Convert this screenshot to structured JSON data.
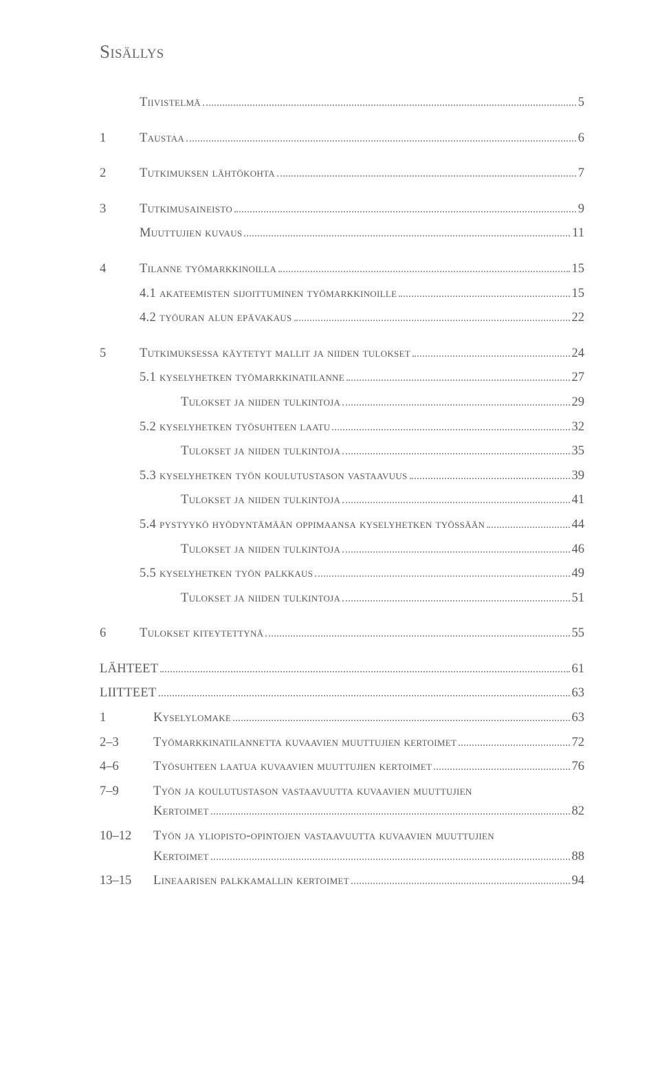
{
  "title": "Sisällys",
  "entries": [
    {
      "num": "",
      "label": "Tiivistelmä",
      "page": "5",
      "level": 1,
      "gap": false
    },
    {
      "num": "1",
      "label": "Taustaa",
      "page": "6",
      "level": 1,
      "gap": true
    },
    {
      "num": "2",
      "label": "Tutkimuksen lähtökohta",
      "page": "7",
      "level": 1,
      "gap": true
    },
    {
      "num": "3",
      "label": "Tutkimusaineisto",
      "page": "9",
      "level": 1,
      "gap": true
    },
    {
      "num": "",
      "label": "Muuttujien kuvaus",
      "page": "11",
      "level": 2,
      "gap": false
    },
    {
      "num": "4",
      "label": "Tilanne työmarkkinoilla",
      "page": "15",
      "level": 1,
      "gap": true
    },
    {
      "num": "",
      "label": "4.1 Akateemisten sijoittuminen työmarkkinoille",
      "page": "15",
      "level": 2,
      "gap": false
    },
    {
      "num": "",
      "label": "4.2 Työuran alun epävakaus",
      "page": "22",
      "level": 2,
      "gap": false
    },
    {
      "num": "5",
      "label": "Tutkimuksessa käytetyt mallit ja niiden tulokset",
      "page": "24",
      "level": 1,
      "gap": true
    },
    {
      "num": "",
      "label": "5.1 Kyselyhetken työmarkkinatilanne",
      "page": "27",
      "level": 2,
      "gap": false
    },
    {
      "num": "",
      "label": "Tulokset ja niiden tulkintoja",
      "page": "29",
      "level": 3,
      "gap": false
    },
    {
      "num": "",
      "label": "5.2 Kyselyhetken työsuhteen laatu",
      "page": "32",
      "level": 2,
      "gap": false
    },
    {
      "num": "",
      "label": "Tulokset ja niiden tulkintoja",
      "page": "35",
      "level": 3,
      "gap": false
    },
    {
      "num": "",
      "label": "5.3 Kyselyhetken työn koulutustason vastaavuus",
      "page": "39",
      "level": 2,
      "gap": false
    },
    {
      "num": "",
      "label": "Tulokset ja niiden tulkintoja",
      "page": "41",
      "level": 3,
      "gap": false
    },
    {
      "num": "",
      "label": "5.4 Pystyykö hyödyntämään oppimaansa kyselyhetken työssään",
      "page": "44",
      "level": 2,
      "gap": false
    },
    {
      "num": "",
      "label": "Tulokset ja niiden tulkintoja",
      "page": "46",
      "level": 3,
      "gap": false
    },
    {
      "num": "",
      "label": "5.5 Kyselyhetken työn palkkaus",
      "page": "49",
      "level": 2,
      "gap": false
    },
    {
      "num": "",
      "label": "Tulokset ja niiden tulkintoja",
      "page": "51",
      "level": 3,
      "gap": false
    },
    {
      "num": "6",
      "label": "Tulokset kiteytettynä",
      "page": "55",
      "level": 1,
      "gap": true
    }
  ],
  "back": [
    {
      "num": "",
      "label": "LÄHTEET",
      "page": "61",
      "plain": true,
      "gap": true
    },
    {
      "num": "",
      "label": "LIITTEET",
      "page": "63",
      "plain": true,
      "gap": false
    },
    {
      "num": "1",
      "label": "Kyselylomake",
      "page": "63",
      "gap": false
    },
    {
      "num": "2–3",
      "label": "Työmarkkinatilannetta kuvaavien muuttujien kertoimet",
      "page": "72",
      "gap": false
    },
    {
      "num": "4–6",
      "label": "Työsuhteen laatua kuvaavien muuttujien kertoimet",
      "page": "76",
      "gap": false
    },
    {
      "num": "7–9",
      "label": "Työn ja koulutustason vastaavuutta kuvaavien muuttujien",
      "label2": "kertoimet",
      "page": "82",
      "gap": false,
      "wrap": true
    },
    {
      "num": "10–12",
      "label": "Työn ja yliopisto-opintojen vastaavuutta kuvaavien muuttujien",
      "label2": "kertoimet",
      "page": "88",
      "gap": false,
      "wrap": true
    },
    {
      "num": "13–15",
      "label": "Lineaarisen palkkamallin kertoimet",
      "page": "94",
      "gap": false
    }
  ],
  "colors": {
    "text": "#5a5a5a",
    "background": "#ffffff",
    "leaders": "#9a9a9a"
  },
  "typography": {
    "heading_fontsize_pt": 20,
    "body_fontsize_pt": 14
  }
}
